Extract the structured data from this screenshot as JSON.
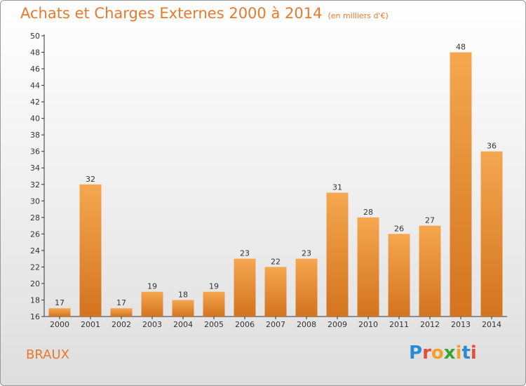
{
  "header": {
    "title": "Achats et Charges Externes 2000 à 2014",
    "subtitle": "(en milliers d'€)"
  },
  "footer": {
    "place": "BRAUX",
    "brand_letters": [
      "P",
      "r",
      "o",
      "x",
      "i",
      "t",
      "i"
    ],
    "brand_colors": [
      "#2a8ad6",
      "#e64c3c",
      "#f2a22a",
      "#3aa537",
      "#f2a22a",
      "#2a8ad6",
      "#e64c3c"
    ]
  },
  "colors": {
    "bar_top": "#f5a74f",
    "bar_bottom": "#d3731f",
    "accent": "#e8792b"
  },
  "chart_data": {
    "type": "bar",
    "categories": [
      "2000",
      "2001",
      "2002",
      "2003",
      "2004",
      "2005",
      "2006",
      "2007",
      "2008",
      "2009",
      "2010",
      "2011",
      "2012",
      "2013",
      "2014"
    ],
    "values": [
      17,
      32,
      17,
      19,
      18,
      19,
      23,
      22,
      23,
      31,
      28,
      26,
      27,
      48,
      36
    ],
    "ylim": [
      16,
      50
    ],
    "yticks": [
      16,
      18,
      20,
      22,
      24,
      26,
      28,
      30,
      32,
      34,
      36,
      38,
      40,
      42,
      44,
      46,
      48,
      50
    ],
    "grid": false
  }
}
